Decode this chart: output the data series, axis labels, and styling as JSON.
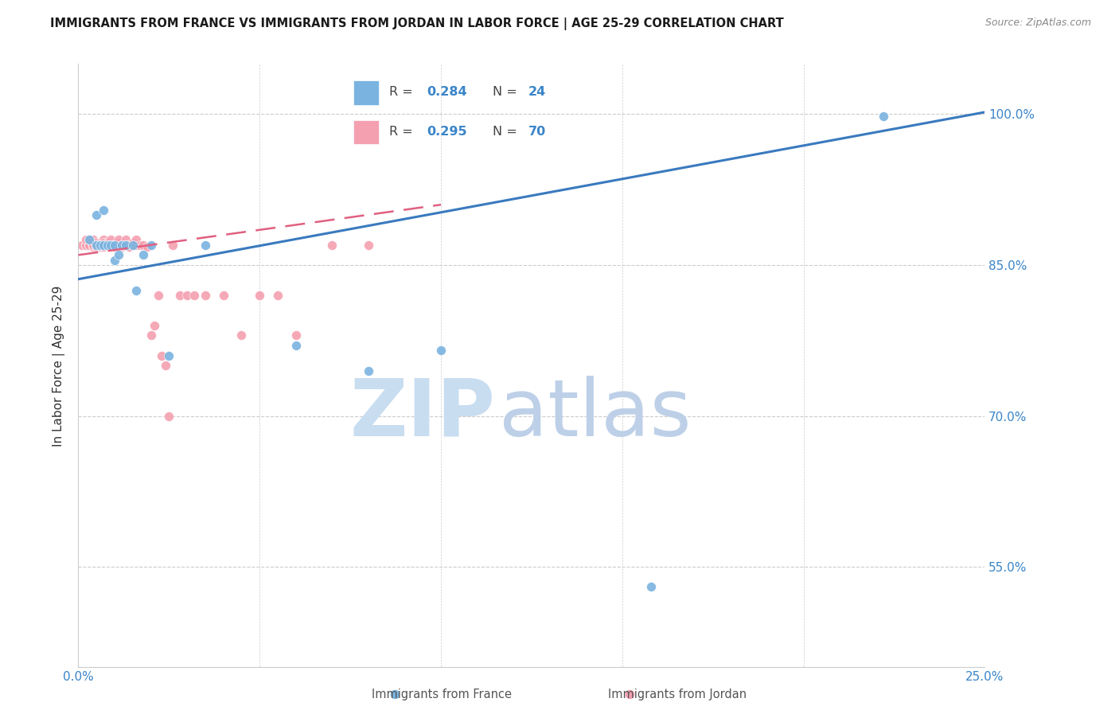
{
  "title": "IMMIGRANTS FROM FRANCE VS IMMIGRANTS FROM JORDAN IN LABOR FORCE | AGE 25-29 CORRELATION CHART",
  "source": "Source: ZipAtlas.com",
  "ylabel": "In Labor Force | Age 25-29",
  "xlim": [
    0.0,
    0.25
  ],
  "ylim": [
    0.45,
    1.05
  ],
  "yticks": [
    0.55,
    0.7,
    0.85,
    1.0
  ],
  "ytick_labels": [
    "55.0%",
    "70.0%",
    "85.0%",
    "100.0%"
  ],
  "xtick_labels": [
    "0.0%",
    "",
    "",
    "",
    "",
    "25.0%"
  ],
  "france_color": "#7ab3e0",
  "jordan_color": "#f4a0b0",
  "france_line_color": "#3a7abf",
  "jordan_line_color": "#e06080",
  "france_x": [
    0.003,
    0.005,
    0.005,
    0.006,
    0.007,
    0.007,
    0.008,
    0.009,
    0.01,
    0.01,
    0.011,
    0.012,
    0.013,
    0.015,
    0.016,
    0.018,
    0.02,
    0.025,
    0.035,
    0.06,
    0.08,
    0.1,
    0.158,
    0.222
  ],
  "france_y": [
    0.875,
    0.9,
    0.87,
    0.87,
    0.905,
    0.87,
    0.87,
    0.87,
    0.855,
    0.87,
    0.86,
    0.87,
    0.87,
    0.87,
    0.825,
    0.86,
    0.87,
    0.76,
    0.87,
    0.77,
    0.745,
    0.765,
    0.53,
    0.998
  ],
  "jordan_x": [
    0.001,
    0.002,
    0.002,
    0.002,
    0.003,
    0.003,
    0.003,
    0.004,
    0.004,
    0.004,
    0.004,
    0.005,
    0.005,
    0.005,
    0.005,
    0.005,
    0.005,
    0.006,
    0.006,
    0.006,
    0.006,
    0.006,
    0.007,
    0.007,
    0.007,
    0.007,
    0.008,
    0.008,
    0.008,
    0.009,
    0.009,
    0.009,
    0.01,
    0.01,
    0.01,
    0.011,
    0.011,
    0.011,
    0.012,
    0.012,
    0.013,
    0.013,
    0.013,
    0.014,
    0.014,
    0.015,
    0.015,
    0.016,
    0.016,
    0.017,
    0.018,
    0.019,
    0.02,
    0.021,
    0.022,
    0.023,
    0.024,
    0.025,
    0.026,
    0.028,
    0.03,
    0.032,
    0.035,
    0.04,
    0.045,
    0.05,
    0.055,
    0.06,
    0.07,
    0.08
  ],
  "jordan_y": [
    0.87,
    0.87,
    0.87,
    0.875,
    0.87,
    0.87,
    0.875,
    0.87,
    0.868,
    0.875,
    0.87,
    0.87,
    0.87,
    0.872,
    0.87,
    0.868,
    0.87,
    0.87,
    0.872,
    0.87,
    0.868,
    0.87,
    0.87,
    0.875,
    0.872,
    0.868,
    0.87,
    0.872,
    0.87,
    0.87,
    0.875,
    0.87,
    0.87,
    0.868,
    0.87,
    0.87,
    0.872,
    0.875,
    0.87,
    0.868,
    0.87,
    0.875,
    0.87,
    0.87,
    0.868,
    0.87,
    0.872,
    0.87,
    0.875,
    0.87,
    0.87,
    0.868,
    0.78,
    0.79,
    0.82,
    0.76,
    0.75,
    0.7,
    0.87,
    0.82,
    0.82,
    0.82,
    0.82,
    0.82,
    0.78,
    0.82,
    0.82,
    0.78,
    0.87,
    0.87
  ],
  "france_line_x": [
    0.0,
    0.25
  ],
  "france_line_y": [
    0.836,
    1.002
  ],
  "jordan_line_x": [
    0.0,
    0.1
  ],
  "jordan_line_y": [
    0.86,
    0.91
  ],
  "watermark_zip_color": "#c8ddf0",
  "watermark_atlas_color": "#bdd0e8",
  "grid_color": "#cccccc",
  "title_color": "#1a1a1a",
  "source_color": "#888888",
  "tick_color": "#3a85c8",
  "ylabel_color": "#333333"
}
